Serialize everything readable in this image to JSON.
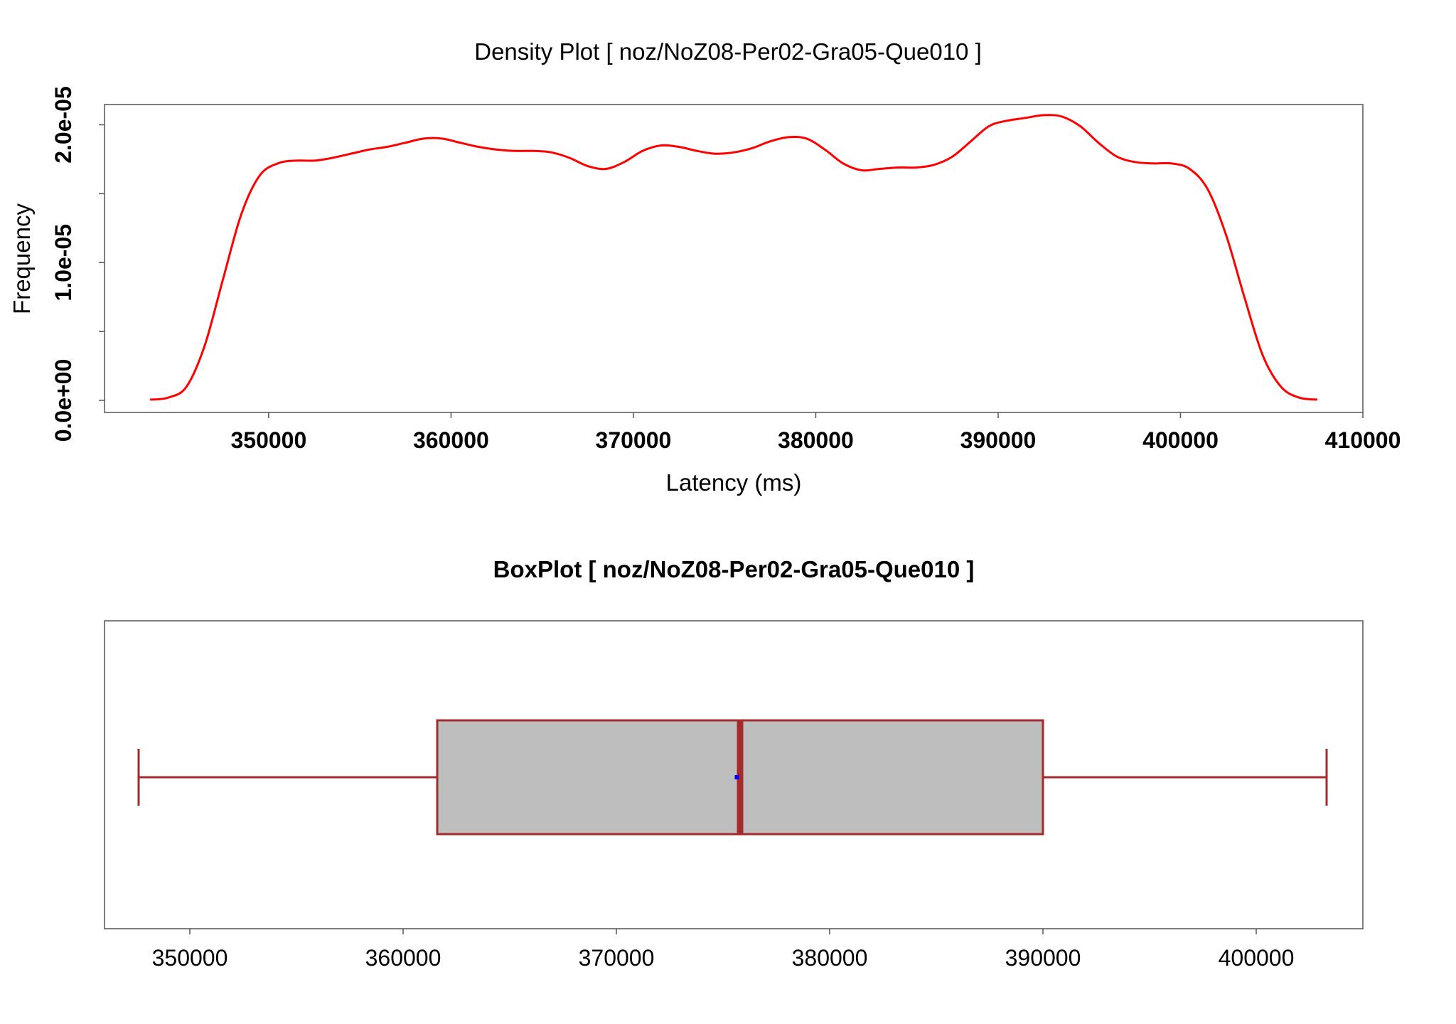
{
  "chart_data": [
    {
      "type": "line",
      "title": "Density Plot [ noz/NoZ08-Per02-Gra05-Que010 ]",
      "xlabel": "Latency (ms)",
      "ylabel": "Frequency",
      "xlim": [
        341000,
        410000
      ],
      "ylim": [
        0,
        2.08e-05
      ],
      "x_ticks": [
        350000,
        360000,
        370000,
        380000,
        390000,
        400000,
        410000
      ],
      "x_tick_labels": [
        "350000",
        "360000",
        "370000",
        "380000",
        "390000",
        "400000",
        "410000"
      ],
      "y_ticks": [
        0,
        1e-05,
        2e-05
      ],
      "y_tick_labels": [
        "0.0e+00",
        "1.0e-05",
        "2.0e-05"
      ],
      "y_minor_ticks": [
        5e-06,
        1.5e-05
      ],
      "grid": false,
      "series": [
        {
          "color": "#ff0000",
          "x": [
            343500,
            344500,
            345500,
            346500,
            347500,
            348500,
            349500,
            350500,
            351500,
            352500,
            353500,
            354500,
            355500,
            356500,
            357500,
            358500,
            359500,
            360500,
            361500,
            362500,
            363500,
            364500,
            365500,
            366500,
            367500,
            368500,
            369500,
            370500,
            371500,
            372500,
            373500,
            374500,
            375500,
            376500,
            377500,
            378500,
            379500,
            380500,
            381500,
            382500,
            383500,
            384500,
            385500,
            386500,
            387500,
            388500,
            389500,
            390500,
            391500,
            392500,
            393500,
            394500,
            395500,
            396500,
            397500,
            398500,
            399500,
            400500,
            401500,
            402500,
            403500,
            404500,
            405500,
            406500,
            407500
          ],
          "y": [
            5e-08,
            2e-07,
            1e-06,
            4e-06,
            8.8e-06,
            1.35e-05,
            1.63e-05,
            1.72e-05,
            1.74e-05,
            1.74e-05,
            1.76e-05,
            1.79e-05,
            1.82e-05,
            1.84e-05,
            1.87e-05,
            1.9e-05,
            1.9e-05,
            1.87e-05,
            1.84e-05,
            1.82e-05,
            1.81e-05,
            1.81e-05,
            1.8e-05,
            1.76e-05,
            1.7e-05,
            1.68e-05,
            1.73e-05,
            1.81e-05,
            1.85e-05,
            1.84e-05,
            1.81e-05,
            1.79e-05,
            1.8e-05,
            1.83e-05,
            1.88e-05,
            1.91e-05,
            1.9e-05,
            1.82e-05,
            1.72e-05,
            1.67e-05,
            1.68e-05,
            1.69e-05,
            1.69e-05,
            1.71e-05,
            1.77e-05,
            1.88e-05,
            1.99e-05,
            2.03e-05,
            2.05e-05,
            2.07e-05,
            2.06e-05,
            1.99e-05,
            1.87e-05,
            1.77e-05,
            1.73e-05,
            1.72e-05,
            1.72e-05,
            1.68e-05,
            1.53e-05,
            1.2e-05,
            7.5e-06,
            3.3e-06,
            1e-06,
            2e-07,
            5e-08
          ]
        }
      ]
    },
    {
      "type": "box",
      "title": "BoxPlot [ noz/NoZ08-Per02-Gra05-Que010 ]",
      "xlim": [
        346000,
        405000
      ],
      "x_ticks": [
        350000,
        360000,
        370000,
        380000,
        390000,
        400000
      ],
      "x_tick_labels": [
        "350000",
        "360000",
        "370000",
        "380000",
        "390000",
        "400000"
      ],
      "grid": false,
      "box": {
        "whisker_low": 347600,
        "q1": 361600,
        "median": 375800,
        "mean": 375650,
        "q3": 390000,
        "whisker_high": 403300
      },
      "box_fill": "#bebebe",
      "box_stroke": "#a52a2a",
      "mean_color": "#0000ff"
    }
  ]
}
